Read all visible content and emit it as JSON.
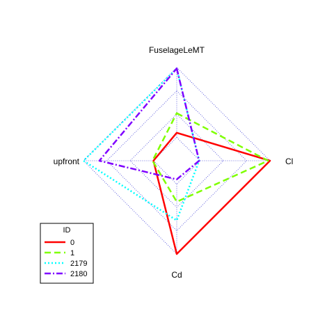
{
  "chart_data": {
    "type": "radar",
    "axes": [
      "FuselageLeMT",
      "Cl",
      "Cd",
      "upfront"
    ],
    "rlim": [
      0,
      1
    ],
    "grid_levels": [
      0.25,
      0.5,
      0.75,
      1.0
    ],
    "grid_color": "#3b3bd6",
    "legend": {
      "title": "ID",
      "placement": "bottom-left"
    },
    "series": [
      {
        "name": "0",
        "color": "#ff0000",
        "dash": "solid",
        "values": [
          0.3,
          1.0,
          1.0,
          0.25
        ]
      },
      {
        "name": "1",
        "color": "#7fff00",
        "dash": "dashed",
        "values": [
          0.51,
          0.98,
          0.44,
          0.26
        ]
      },
      {
        "name": "2179",
        "color": "#00ffff",
        "dash": "dotted",
        "values": [
          0.99,
          0.24,
          0.64,
          1.0
        ]
      },
      {
        "name": "2180",
        "color": "#7f00ff",
        "dash": "dashdot",
        "values": [
          0.99,
          0.24,
          0.2,
          0.83
        ]
      }
    ]
  }
}
